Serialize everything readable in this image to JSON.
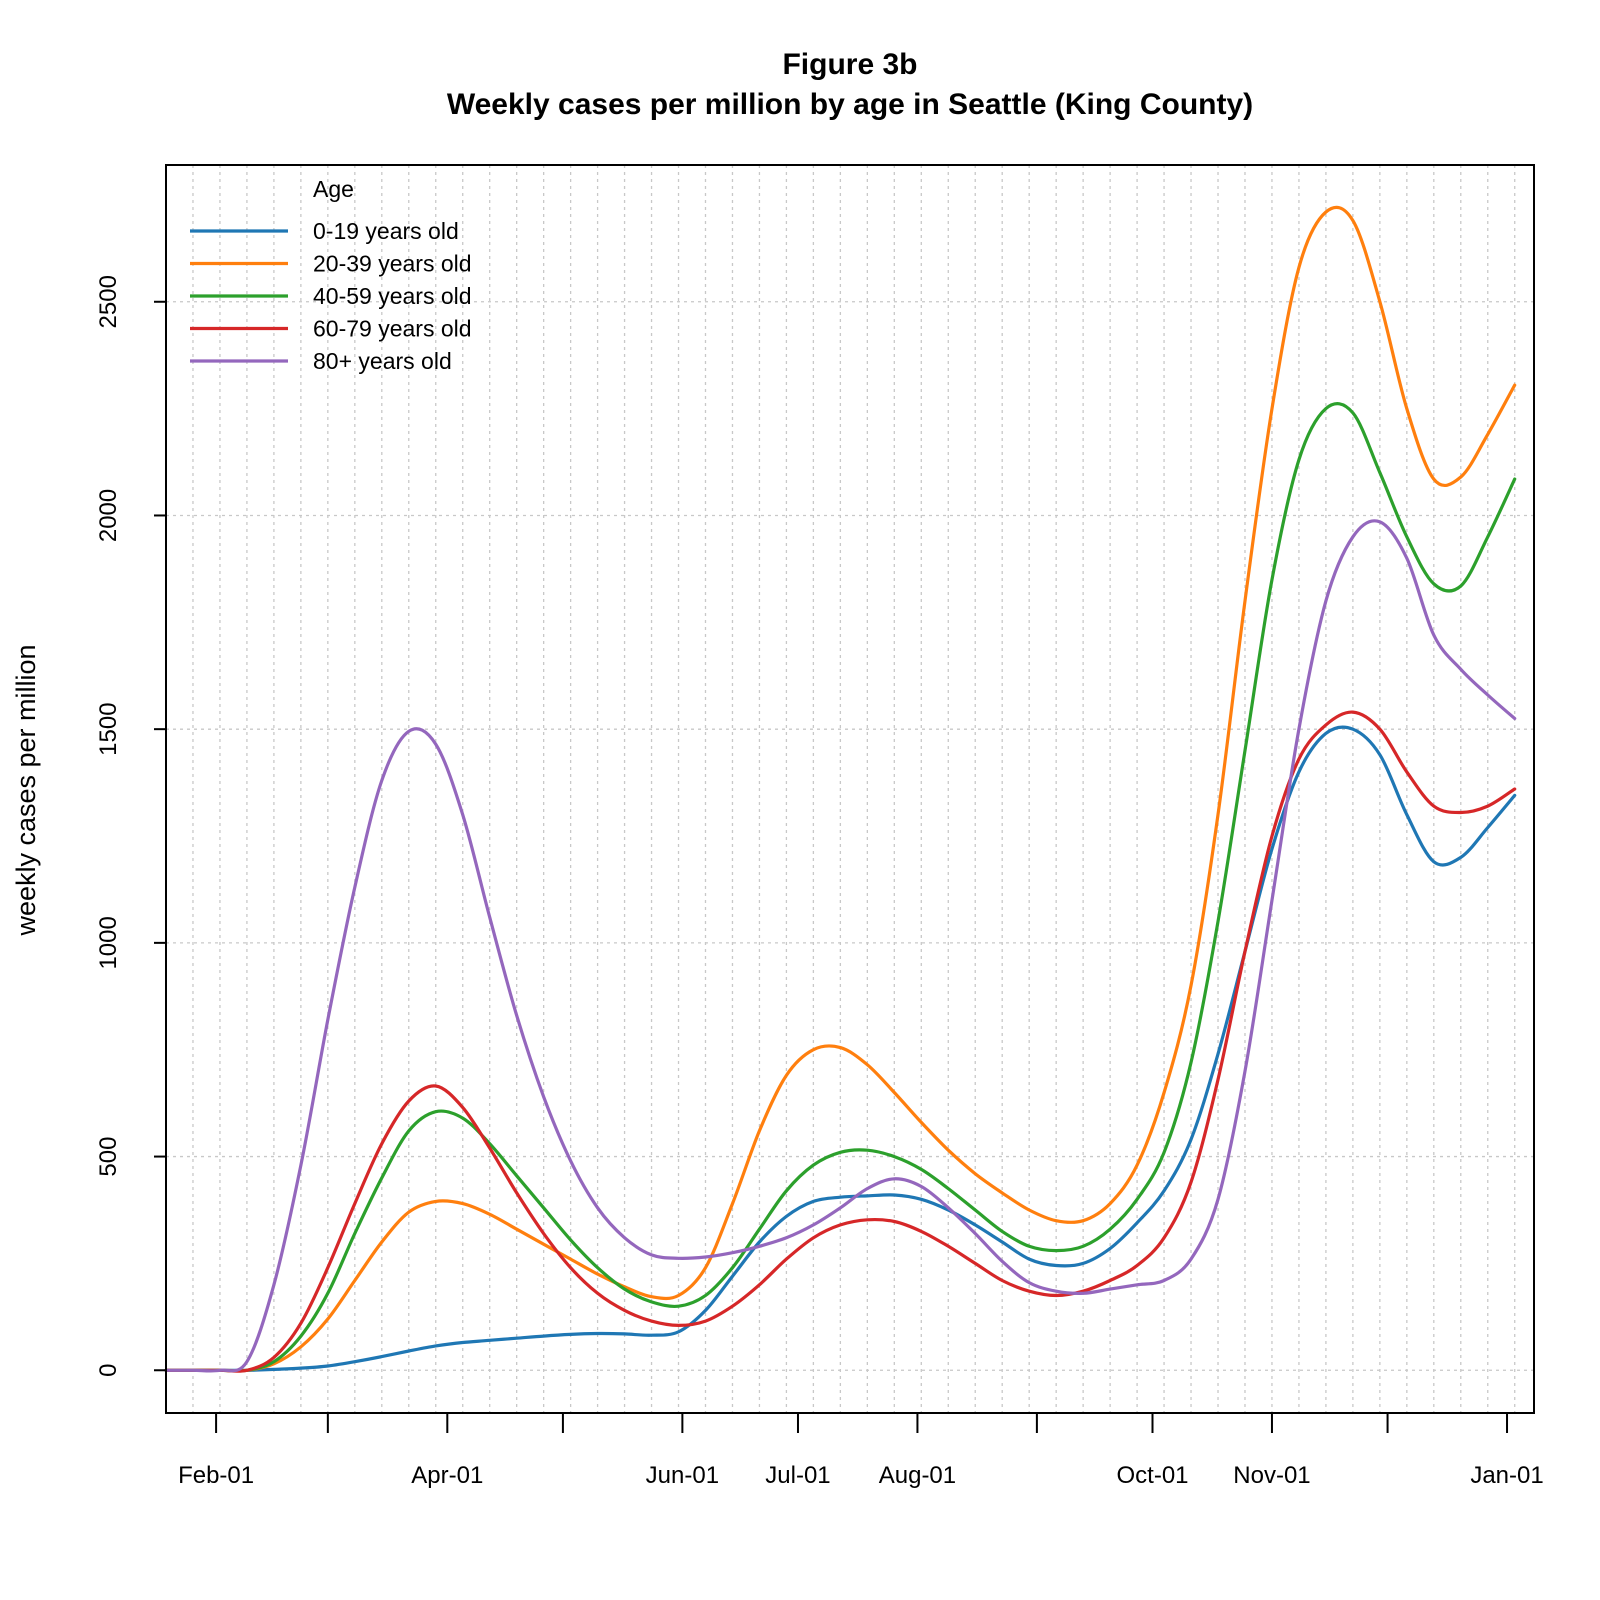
{
  "chart_data": {
    "type": "line",
    "title": "Figure 3b",
    "subtitle": "Weekly cases per million by age in Seattle (King County)",
    "xlabel": "",
    "ylabel": "weekly cases per million",
    "x_type": "date",
    "xlim": [
      "2020-01-19",
      "2021-01-08"
    ],
    "ylim": [
      -100,
      2820
    ],
    "y_ticks": [
      0,
      500,
      1000,
      1500,
      2000,
      2500
    ],
    "x_ticks": [
      {
        "date": "2020-02-01",
        "label": "Feb-01"
      },
      {
        "date": "2020-03-01",
        "label": ""
      },
      {
        "date": "2020-04-01",
        "label": "Apr-01"
      },
      {
        "date": "2020-05-01",
        "label": ""
      },
      {
        "date": "2020-06-01",
        "label": "Jun-01"
      },
      {
        "date": "2020-07-01",
        "label": "Jul-01"
      },
      {
        "date": "2020-08-01",
        "label": "Aug-01"
      },
      {
        "date": "2020-09-01",
        "label": ""
      },
      {
        "date": "2020-10-01",
        "label": "Oct-01"
      },
      {
        "date": "2020-11-01",
        "label": "Nov-01"
      },
      {
        "date": "2020-12-01",
        "label": ""
      },
      {
        "date": "2021-01-01",
        "label": "Jan-01"
      }
    ],
    "grid_weekly_start": "2020-01-19",
    "grid": true,
    "legend_title": "Age",
    "legend_position": "top-left",
    "series": [
      {
        "name": "0-19 years old",
        "color": "#1f77b4",
        "points": [
          [
            "2020-01-19",
            0
          ],
          [
            "2020-01-26",
            0
          ],
          [
            "2020-02-02",
            0
          ],
          [
            "2020-02-09",
            0
          ],
          [
            "2020-02-16",
            2
          ],
          [
            "2020-02-23",
            5
          ],
          [
            "2020-03-01",
            10
          ],
          [
            "2020-03-08",
            20
          ],
          [
            "2020-03-15",
            32
          ],
          [
            "2020-03-22",
            45
          ],
          [
            "2020-03-29",
            57
          ],
          [
            "2020-04-05",
            65
          ],
          [
            "2020-04-12",
            70
          ],
          [
            "2020-04-19",
            75
          ],
          [
            "2020-04-26",
            80
          ],
          [
            "2020-05-03",
            84
          ],
          [
            "2020-05-10",
            86
          ],
          [
            "2020-05-17",
            85
          ],
          [
            "2020-05-24",
            82
          ],
          [
            "2020-05-31",
            90
          ],
          [
            "2020-06-07",
            140
          ],
          [
            "2020-06-14",
            220
          ],
          [
            "2020-06-21",
            300
          ],
          [
            "2020-06-28",
            360
          ],
          [
            "2020-07-05",
            395
          ],
          [
            "2020-07-12",
            405
          ],
          [
            "2020-07-19",
            408
          ],
          [
            "2020-07-26",
            410
          ],
          [
            "2020-08-02",
            400
          ],
          [
            "2020-08-09",
            375
          ],
          [
            "2020-08-16",
            340
          ],
          [
            "2020-08-23",
            300
          ],
          [
            "2020-08-30",
            260
          ],
          [
            "2020-09-06",
            245
          ],
          [
            "2020-09-13",
            250
          ],
          [
            "2020-09-20",
            285
          ],
          [
            "2020-09-27",
            345
          ],
          [
            "2020-10-04",
            420
          ],
          [
            "2020-10-11",
            540
          ],
          [
            "2020-10-18",
            740
          ],
          [
            "2020-10-25",
            980
          ],
          [
            "2020-11-01",
            1220
          ],
          [
            "2020-11-08",
            1400
          ],
          [
            "2020-11-15",
            1490
          ],
          [
            "2020-11-22",
            1500
          ],
          [
            "2020-11-29",
            1440
          ],
          [
            "2020-12-06",
            1300
          ],
          [
            "2020-12-13",
            1190
          ],
          [
            "2020-12-20",
            1200
          ],
          [
            "2020-12-27",
            1270
          ],
          [
            "2021-01-03",
            1345
          ]
        ]
      },
      {
        "name": "20-39 years old",
        "color": "#ff7f0e",
        "points": [
          [
            "2020-01-19",
            0
          ],
          [
            "2020-01-26",
            0
          ],
          [
            "2020-02-02",
            0
          ],
          [
            "2020-02-09",
            0
          ],
          [
            "2020-02-16",
            15
          ],
          [
            "2020-02-23",
            55
          ],
          [
            "2020-03-01",
            120
          ],
          [
            "2020-03-08",
            210
          ],
          [
            "2020-03-15",
            300
          ],
          [
            "2020-03-22",
            370
          ],
          [
            "2020-03-29",
            395
          ],
          [
            "2020-04-05",
            390
          ],
          [
            "2020-04-12",
            365
          ],
          [
            "2020-04-19",
            330
          ],
          [
            "2020-04-26",
            295
          ],
          [
            "2020-05-03",
            260
          ],
          [
            "2020-05-10",
            225
          ],
          [
            "2020-05-17",
            195
          ],
          [
            "2020-05-24",
            172
          ],
          [
            "2020-05-31",
            175
          ],
          [
            "2020-06-07",
            240
          ],
          [
            "2020-06-14",
            390
          ],
          [
            "2020-06-21",
            560
          ],
          [
            "2020-06-28",
            690
          ],
          [
            "2020-07-05",
            750
          ],
          [
            "2020-07-12",
            755
          ],
          [
            "2020-07-19",
            715
          ],
          [
            "2020-07-26",
            650
          ],
          [
            "2020-08-02",
            580
          ],
          [
            "2020-08-09",
            515
          ],
          [
            "2020-08-16",
            460
          ],
          [
            "2020-08-23",
            415
          ],
          [
            "2020-08-30",
            375
          ],
          [
            "2020-09-06",
            350
          ],
          [
            "2020-09-13",
            350
          ],
          [
            "2020-09-20",
            390
          ],
          [
            "2020-09-27",
            480
          ],
          [
            "2020-10-04",
            650
          ],
          [
            "2020-10-11",
            900
          ],
          [
            "2020-10-18",
            1300
          ],
          [
            "2020-10-25",
            1800
          ],
          [
            "2020-11-01",
            2250
          ],
          [
            "2020-11-08",
            2580
          ],
          [
            "2020-11-15",
            2710
          ],
          [
            "2020-11-22",
            2690
          ],
          [
            "2020-11-29",
            2500
          ],
          [
            "2020-12-06",
            2250
          ],
          [
            "2020-12-13",
            2085
          ],
          [
            "2020-12-20",
            2090
          ],
          [
            "2020-12-27",
            2190
          ],
          [
            "2021-01-03",
            2305
          ]
        ]
      },
      {
        "name": "40-59 years old",
        "color": "#2ca02c",
        "points": [
          [
            "2020-01-19",
            0
          ],
          [
            "2020-01-26",
            0
          ],
          [
            "2020-02-02",
            0
          ],
          [
            "2020-02-09",
            0
          ],
          [
            "2020-02-16",
            20
          ],
          [
            "2020-02-23",
            80
          ],
          [
            "2020-03-01",
            180
          ],
          [
            "2020-03-08",
            320
          ],
          [
            "2020-03-15",
            450
          ],
          [
            "2020-03-22",
            560
          ],
          [
            "2020-03-29",
            605
          ],
          [
            "2020-04-05",
            590
          ],
          [
            "2020-04-12",
            530
          ],
          [
            "2020-04-19",
            455
          ],
          [
            "2020-04-26",
            380
          ],
          [
            "2020-05-03",
            305
          ],
          [
            "2020-05-10",
            240
          ],
          [
            "2020-05-17",
            190
          ],
          [
            "2020-05-24",
            160
          ],
          [
            "2020-05-31",
            150
          ],
          [
            "2020-06-07",
            175
          ],
          [
            "2020-06-14",
            240
          ],
          [
            "2020-06-21",
            330
          ],
          [
            "2020-06-28",
            420
          ],
          [
            "2020-07-05",
            480
          ],
          [
            "2020-07-12",
            510
          ],
          [
            "2020-07-19",
            515
          ],
          [
            "2020-07-26",
            500
          ],
          [
            "2020-08-02",
            470
          ],
          [
            "2020-08-09",
            425
          ],
          [
            "2020-08-16",
            375
          ],
          [
            "2020-08-23",
            325
          ],
          [
            "2020-08-30",
            290
          ],
          [
            "2020-09-06",
            280
          ],
          [
            "2020-09-13",
            290
          ],
          [
            "2020-09-20",
            330
          ],
          [
            "2020-09-27",
            400
          ],
          [
            "2020-10-04",
            510
          ],
          [
            "2020-10-11",
            720
          ],
          [
            "2020-10-18",
            1050
          ],
          [
            "2020-10-25",
            1450
          ],
          [
            "2020-11-01",
            1850
          ],
          [
            "2020-11-08",
            2130
          ],
          [
            "2020-11-15",
            2250
          ],
          [
            "2020-11-22",
            2240
          ],
          [
            "2020-11-29",
            2100
          ],
          [
            "2020-12-06",
            1950
          ],
          [
            "2020-12-13",
            1840
          ],
          [
            "2020-12-20",
            1835
          ],
          [
            "2020-12-27",
            1950
          ],
          [
            "2021-01-03",
            2085
          ]
        ]
      },
      {
        "name": "60-79 years old",
        "color": "#d62728",
        "points": [
          [
            "2020-01-19",
            0
          ],
          [
            "2020-01-26",
            0
          ],
          [
            "2020-02-02",
            0
          ],
          [
            "2020-02-09",
            0
          ],
          [
            "2020-02-16",
            30
          ],
          [
            "2020-02-23",
            110
          ],
          [
            "2020-03-01",
            240
          ],
          [
            "2020-03-08",
            390
          ],
          [
            "2020-03-15",
            530
          ],
          [
            "2020-03-22",
            630
          ],
          [
            "2020-03-29",
            665
          ],
          [
            "2020-04-05",
            615
          ],
          [
            "2020-04-12",
            520
          ],
          [
            "2020-04-19",
            415
          ],
          [
            "2020-04-26",
            320
          ],
          [
            "2020-05-03",
            240
          ],
          [
            "2020-05-10",
            180
          ],
          [
            "2020-05-17",
            140
          ],
          [
            "2020-05-24",
            115
          ],
          [
            "2020-05-31",
            105
          ],
          [
            "2020-06-07",
            115
          ],
          [
            "2020-06-14",
            150
          ],
          [
            "2020-06-21",
            200
          ],
          [
            "2020-06-28",
            260
          ],
          [
            "2020-07-05",
            310
          ],
          [
            "2020-07-12",
            340
          ],
          [
            "2020-07-19",
            352
          ],
          [
            "2020-07-26",
            348
          ],
          [
            "2020-08-02",
            325
          ],
          [
            "2020-08-09",
            290
          ],
          [
            "2020-08-16",
            250
          ],
          [
            "2020-08-23",
            210
          ],
          [
            "2020-08-30",
            185
          ],
          [
            "2020-09-06",
            175
          ],
          [
            "2020-09-13",
            185
          ],
          [
            "2020-09-20",
            210
          ],
          [
            "2020-09-27",
            245
          ],
          [
            "2020-10-04",
            310
          ],
          [
            "2020-10-11",
            440
          ],
          [
            "2020-10-18",
            680
          ],
          [
            "2020-10-25",
            980
          ],
          [
            "2020-11-01",
            1250
          ],
          [
            "2020-11-08",
            1430
          ],
          [
            "2020-11-15",
            1510
          ],
          [
            "2020-11-22",
            1540
          ],
          [
            "2020-11-29",
            1500
          ],
          [
            "2020-12-06",
            1400
          ],
          [
            "2020-12-13",
            1320
          ],
          [
            "2020-12-20",
            1305
          ],
          [
            "2020-12-27",
            1320
          ],
          [
            "2021-01-03",
            1360
          ]
        ]
      },
      {
        "name": "80+ years old",
        "color": "#9467bd",
        "points": [
          [
            "2020-01-19",
            0
          ],
          [
            "2020-01-26",
            0
          ],
          [
            "2020-02-02",
            0
          ],
          [
            "2020-02-09",
            20
          ],
          [
            "2020-02-16",
            200
          ],
          [
            "2020-02-23",
            480
          ],
          [
            "2020-03-01",
            820
          ],
          [
            "2020-03-08",
            1130
          ],
          [
            "2020-03-15",
            1380
          ],
          [
            "2020-03-22",
            1495
          ],
          [
            "2020-03-29",
            1465
          ],
          [
            "2020-04-05",
            1300
          ],
          [
            "2020-04-12",
            1060
          ],
          [
            "2020-04-19",
            830
          ],
          [
            "2020-04-26",
            640
          ],
          [
            "2020-05-03",
            490
          ],
          [
            "2020-05-10",
            380
          ],
          [
            "2020-05-17",
            310
          ],
          [
            "2020-05-24",
            270
          ],
          [
            "2020-05-31",
            262
          ],
          [
            "2020-06-07",
            265
          ],
          [
            "2020-06-14",
            275
          ],
          [
            "2020-06-21",
            290
          ],
          [
            "2020-06-28",
            310
          ],
          [
            "2020-07-05",
            340
          ],
          [
            "2020-07-12",
            380
          ],
          [
            "2020-07-19",
            425
          ],
          [
            "2020-07-26",
            448
          ],
          [
            "2020-08-02",
            430
          ],
          [
            "2020-08-09",
            380
          ],
          [
            "2020-08-16",
            320
          ],
          [
            "2020-08-23",
            255
          ],
          [
            "2020-08-30",
            205
          ],
          [
            "2020-09-06",
            185
          ],
          [
            "2020-09-13",
            180
          ],
          [
            "2020-09-20",
            190
          ],
          [
            "2020-09-27",
            200
          ],
          [
            "2020-10-04",
            210
          ],
          [
            "2020-10-11",
            260
          ],
          [
            "2020-10-18",
            400
          ],
          [
            "2020-10-25",
            700
          ],
          [
            "2020-11-01",
            1100
          ],
          [
            "2020-11-08",
            1500
          ],
          [
            "2020-11-15",
            1800
          ],
          [
            "2020-11-22",
            1950
          ],
          [
            "2020-11-29",
            1985
          ],
          [
            "2020-12-06",
            1900
          ],
          [
            "2020-12-13",
            1720
          ],
          [
            "2020-12-20",
            1640
          ],
          [
            "2020-12-27",
            1580
          ],
          [
            "2021-01-03",
            1525
          ]
        ]
      }
    ]
  }
}
